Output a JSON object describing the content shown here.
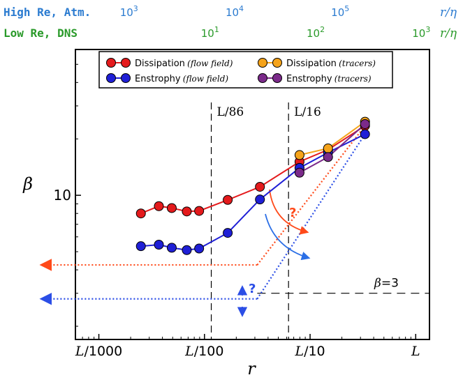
{
  "chart_data": {
    "type": "line",
    "x_scale": "log",
    "y_scale": "log",
    "xlim": [
      0.0006,
      1.35
    ],
    "ylim": [
      1.7,
      60
    ],
    "xlabel": "r",
    "ylabel": "β",
    "x_ticks": [
      {
        "value": 0.001,
        "label": "L/1000"
      },
      {
        "value": 0.01,
        "label": "L/100"
      },
      {
        "value": 0.1,
        "label": "L/10"
      },
      {
        "value": 1,
        "label": "L"
      }
    ],
    "y_ticks": [
      {
        "value": 10,
        "label": "10"
      }
    ],
    "top_axes": [
      {
        "name": "High Re, Atm.",
        "color": "#2b7bd0",
        "unit_label": "r/η",
        "ticks": [
          {
            "value": 0.00193,
            "exponent": "3"
          },
          {
            "value": 0.0193,
            "exponent": "4"
          },
          {
            "value": 0.193,
            "exponent": "5"
          }
        ]
      },
      {
        "name": "Low Re, DNS",
        "color": "#2a9a2a",
        "unit_label": "r/η",
        "ticks": [
          {
            "value": 0.0113,
            "exponent": "1"
          },
          {
            "value": 0.113,
            "exponent": "2"
          },
          {
            "value": 1.13,
            "exponent": "3"
          }
        ]
      }
    ],
    "series": [
      {
        "name": "Dissipation",
        "qualifier": "(flow field)",
        "color": "#e41a1c",
        "marker_color": "#e41a1c",
        "x": [
          0.0025,
          0.0037,
          0.0049,
          0.0068,
          0.0089,
          0.0166,
          0.0335,
          0.0794,
          0.1479,
          0.3311
        ],
        "y": [
          8.0,
          8.75,
          8.55,
          8.2,
          8.25,
          9.45,
          11.1,
          15.1,
          17.5,
          23.5
        ]
      },
      {
        "name": "Enstrophy",
        "qualifier": "(flow field)",
        "color": "#1f1fd6",
        "marker_color": "#1f1fd6",
        "x": [
          0.0025,
          0.0037,
          0.0049,
          0.0068,
          0.0089,
          0.0166,
          0.0335,
          0.0794,
          0.1479,
          0.3311
        ],
        "y": [
          5.35,
          5.45,
          5.25,
          5.1,
          5.2,
          6.3,
          9.5,
          14.0,
          16.9,
          21.2
        ]
      },
      {
        "name": "Dissipation",
        "qualifier": "(tracers)",
        "color": "#f5a31a",
        "marker_color": "#f5a31a",
        "x": [
          0.0794,
          0.1479,
          0.3311
        ],
        "y": [
          16.4,
          17.8,
          24.7
        ]
      },
      {
        "name": "Enstrophy",
        "qualifier": "(tracers)",
        "color": "#7b2a8a",
        "marker_color": "#7b2a8a",
        "x": [
          0.0794,
          0.1479,
          0.3311
        ],
        "y": [
          13.2,
          16.0,
          24.0
        ]
      }
    ],
    "extrapolations": [
      {
        "color": "#ff4a1a",
        "x": [
          0.0006,
          0.0316,
          0.3311
        ],
        "y": [
          4.25,
          4.25,
          23.5
        ]
      },
      {
        "color": "#2b4ee6",
        "x": [
          0.0006,
          0.0316,
          0.3311
        ],
        "y": [
          2.8,
          2.8,
          21.2
        ]
      }
    ],
    "vertical_markers": [
      {
        "x": 0.0116,
        "label": "L/86"
      },
      {
        "x": 0.0625,
        "label": "L/16"
      }
    ],
    "reference_line": {
      "y": 3.0,
      "x_from": 0.0316,
      "label": "β=3"
    },
    "annotations": {
      "question_red": "?",
      "question_blue": "?"
    },
    "legend": {
      "placement": "top-center",
      "columns": 2
    }
  }
}
